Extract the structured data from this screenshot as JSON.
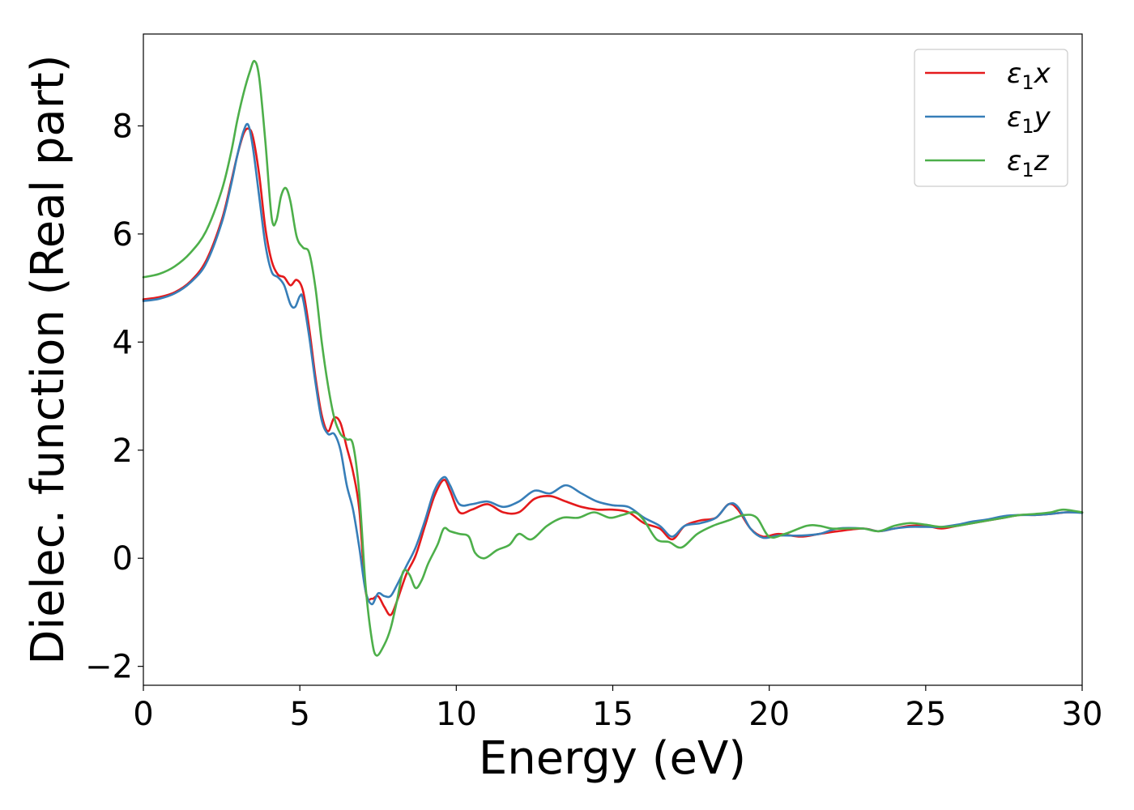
{
  "chart_data": {
    "type": "line",
    "title": "",
    "xlabel": "Energy (eV)",
    "ylabel": "Dielec. function (Real part)",
    "xlim": [
      0,
      30
    ],
    "ylim": [
      -2.35,
      9.7
    ],
    "xticks": [
      0,
      5,
      10,
      15,
      20,
      25,
      30
    ],
    "yticks": [
      -2,
      0,
      2,
      4,
      6,
      8
    ],
    "xtick_labels": [
      "0",
      "5",
      "10",
      "15",
      "20",
      "25",
      "30"
    ],
    "ytick_labels": [
      "−2",
      "0",
      "2",
      "4",
      "6",
      "8"
    ],
    "grid": false,
    "legend_position": "top-right",
    "series": [
      {
        "name": "ε₁x",
        "legend": {
          "sym": "ε",
          "sub": "1",
          "var": "x"
        },
        "color": "#e41a1c",
        "x": [
          0,
          0.5,
          1.0,
          1.5,
          2.0,
          2.5,
          2.8,
          3.0,
          3.2,
          3.35,
          3.5,
          3.7,
          3.9,
          4.1,
          4.3,
          4.5,
          4.7,
          4.9,
          5.1,
          5.3,
          5.5,
          5.7,
          5.9,
          6.1,
          6.3,
          6.5,
          6.7,
          6.9,
          7.1,
          7.3,
          7.5,
          7.7,
          7.9,
          8.1,
          8.4,
          8.7,
          9.0,
          9.3,
          9.6,
          9.8,
          10.1,
          10.5,
          11.0,
          11.5,
          12.0,
          12.5,
          13.0,
          13.5,
          14.0,
          14.5,
          15.0,
          15.5,
          16.0,
          16.5,
          16.9,
          17.3,
          17.8,
          18.3,
          18.7,
          19.0,
          19.4,
          19.8,
          20.3,
          21.0,
          21.6,
          22.2,
          23.0,
          23.5,
          24.0,
          24.5,
          25.0,
          25.5,
          26.0,
          26.5,
          27.0,
          27.5,
          28.0,
          28.5,
          29.0,
          29.5,
          30.0
        ],
        "y": [
          4.79,
          4.83,
          4.92,
          5.12,
          5.5,
          6.25,
          6.95,
          7.45,
          7.85,
          7.95,
          7.8,
          7.1,
          6.1,
          5.5,
          5.25,
          5.2,
          5.05,
          5.15,
          4.95,
          4.25,
          3.35,
          2.65,
          2.35,
          2.6,
          2.5,
          2.05,
          1.6,
          0.9,
          -0.6,
          -0.75,
          -0.7,
          -0.9,
          -1.05,
          -0.8,
          -0.3,
          0.05,
          0.6,
          1.15,
          1.45,
          1.25,
          0.85,
          0.9,
          1.0,
          0.85,
          0.85,
          1.1,
          1.15,
          1.05,
          0.95,
          0.9,
          0.9,
          0.85,
          0.65,
          0.55,
          0.35,
          0.6,
          0.7,
          0.75,
          1.0,
          0.9,
          0.55,
          0.4,
          0.45,
          0.4,
          0.45,
          0.5,
          0.55,
          0.5,
          0.55,
          0.6,
          0.6,
          0.55,
          0.6,
          0.65,
          0.7,
          0.75,
          0.8,
          0.8,
          0.82,
          0.85,
          0.85
        ]
      },
      {
        "name": "ε₁y",
        "legend": {
          "sym": "ε",
          "sub": "1",
          "var": "y"
        },
        "color": "#377eb8",
        "x": [
          0,
          0.5,
          1.0,
          1.5,
          2.0,
          2.5,
          2.8,
          3.0,
          3.2,
          3.35,
          3.5,
          3.7,
          3.9,
          4.1,
          4.3,
          4.5,
          4.7,
          4.85,
          5.0,
          5.1,
          5.3,
          5.5,
          5.7,
          5.9,
          6.1,
          6.3,
          6.5,
          6.7,
          6.9,
          7.1,
          7.3,
          7.5,
          7.7,
          7.9,
          8.1,
          8.4,
          8.7,
          9.0,
          9.3,
          9.6,
          9.8,
          10.1,
          10.5,
          11.0,
          11.5,
          12.0,
          12.5,
          13.0,
          13.5,
          14.0,
          14.5,
          15.0,
          15.5,
          16.0,
          16.5,
          16.9,
          17.3,
          17.8,
          18.3,
          18.7,
          19.0,
          19.4,
          19.8,
          20.3,
          21.0,
          21.6,
          22.2,
          23.0,
          23.5,
          24.0,
          24.5,
          25.0,
          25.5,
          26.0,
          26.5,
          27.0,
          27.5,
          28.0,
          28.5,
          29.0,
          29.5,
          30.0
        ],
        "y": [
          4.76,
          4.8,
          4.9,
          5.1,
          5.45,
          6.2,
          6.9,
          7.45,
          7.9,
          8.02,
          7.6,
          6.7,
          5.8,
          5.3,
          5.2,
          5.05,
          4.7,
          4.65,
          4.85,
          4.8,
          4.1,
          3.25,
          2.55,
          2.3,
          2.3,
          2.0,
          1.35,
          0.9,
          0.2,
          -0.6,
          -0.85,
          -0.65,
          -0.7,
          -0.7,
          -0.5,
          -0.15,
          0.2,
          0.7,
          1.25,
          1.5,
          1.35,
          1.0,
          1.0,
          1.05,
          0.95,
          1.05,
          1.25,
          1.2,
          1.35,
          1.2,
          1.05,
          0.98,
          0.95,
          0.75,
          0.6,
          0.4,
          0.6,
          0.65,
          0.75,
          1.0,
          0.95,
          0.55,
          0.38,
          0.42,
          0.42,
          0.45,
          0.55,
          0.55,
          0.5,
          0.55,
          0.58,
          0.58,
          0.58,
          0.62,
          0.68,
          0.72,
          0.78,
          0.8,
          0.8,
          0.82,
          0.85,
          0.84
        ]
      },
      {
        "name": "ε₁z",
        "legend": {
          "sym": "ε",
          "sub": "1",
          "var": "z"
        },
        "color": "#4daf4a",
        "x": [
          0,
          0.5,
          1.0,
          1.5,
          2.0,
          2.5,
          2.8,
          3.0,
          3.2,
          3.4,
          3.55,
          3.7,
          3.9,
          4.1,
          4.25,
          4.4,
          4.55,
          4.7,
          4.9,
          5.1,
          5.3,
          5.5,
          5.7,
          5.9,
          6.1,
          6.3,
          6.5,
          6.7,
          6.9,
          7.1,
          7.3,
          7.45,
          7.7,
          7.9,
          8.1,
          8.3,
          8.5,
          8.7,
          8.9,
          9.1,
          9.4,
          9.6,
          9.8,
          10.1,
          10.4,
          10.6,
          10.9,
          11.3,
          11.7,
          12.0,
          12.4,
          12.9,
          13.4,
          13.9,
          14.4,
          14.9,
          15.3,
          15.7,
          16.0,
          16.4,
          16.8,
          17.2,
          17.7,
          18.2,
          18.7,
          19.2,
          19.6,
          20.0,
          20.5,
          21.2,
          21.6,
          22.0,
          22.5,
          23.0,
          23.5,
          24.0,
          24.5,
          25.0,
          25.5,
          26.0,
          26.5,
          27.0,
          27.5,
          28.0,
          28.5,
          29.0,
          29.4,
          30.0
        ],
        "y": [
          5.2,
          5.26,
          5.4,
          5.65,
          6.05,
          6.8,
          7.5,
          8.1,
          8.6,
          9.0,
          9.2,
          8.9,
          7.7,
          6.3,
          6.25,
          6.7,
          6.85,
          6.6,
          5.95,
          5.75,
          5.65,
          5.0,
          4.0,
          3.2,
          2.6,
          2.3,
          2.2,
          2.1,
          1.2,
          -0.5,
          -1.5,
          -1.8,
          -1.6,
          -1.3,
          -0.8,
          -0.25,
          -0.3,
          -0.55,
          -0.4,
          -0.1,
          0.25,
          0.55,
          0.5,
          0.45,
          0.4,
          0.1,
          0.0,
          0.15,
          0.25,
          0.45,
          0.35,
          0.6,
          0.75,
          0.75,
          0.85,
          0.75,
          0.8,
          0.85,
          0.7,
          0.35,
          0.3,
          0.2,
          0.45,
          0.6,
          0.7,
          0.8,
          0.75,
          0.4,
          0.45,
          0.6,
          0.6,
          0.55,
          0.55,
          0.55,
          0.5,
          0.6,
          0.65,
          0.62,
          0.58,
          0.6,
          0.65,
          0.7,
          0.75,
          0.8,
          0.82,
          0.85,
          0.9,
          0.85
        ]
      }
    ]
  }
}
